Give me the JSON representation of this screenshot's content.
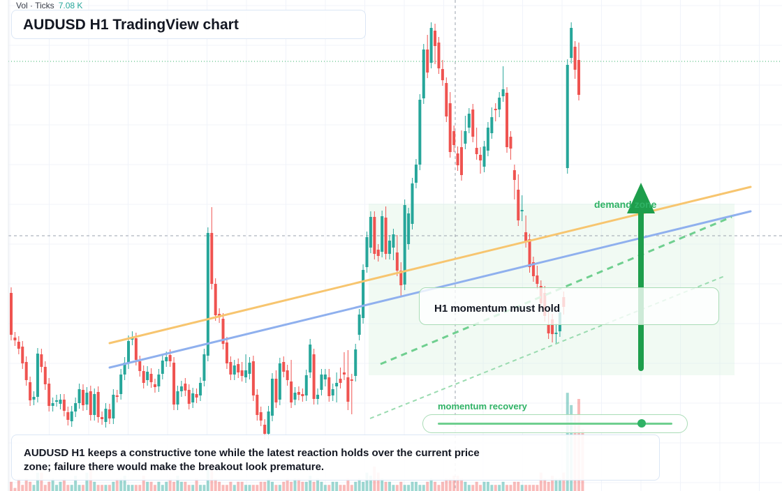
{
  "header": {
    "vol_label": "Vol · Ticks",
    "vol_value": "7.08 K",
    "title": "AUDUSD H1 TradingView chart"
  },
  "annotations": {
    "callout": "H1 momentum must hold",
    "zone_label": "demand zone",
    "momentum_label": "momentum recovery",
    "momentum_level": 0.87,
    "summary": "AUDUSD H1 keeps a constructive tone while the latest reaction holds over the current price zone; failure there would make the breakout look premature."
  },
  "colors": {
    "up": "#26a69a",
    "down": "#ef5350",
    "trend_orange": "#f7c56f",
    "trend_blue": "#8fb0ee",
    "accent_green": "#2fb265",
    "arrow_green": "#1e9e4c"
  },
  "chart_data": {
    "type": "candlestick",
    "candles": [
      [
        420,
        540,
        462,
        480
      ],
      [
        484,
        525,
        464,
        488
      ],
      [
        490,
        513,
        476,
        500
      ],
      [
        497,
        539,
        476,
        521
      ],
      [
        519,
        548,
        520,
        545
      ],
      [
        548,
        578,
        490,
        574
      ],
      [
        573,
        587,
        542,
        569
      ],
      [
        569,
        585,
        493,
        507
      ],
      [
        508,
        567,
        473,
        526
      ],
      [
        526,
        558,
        520,
        551
      ],
      [
        550,
        588,
        539,
        582
      ],
      [
        582,
        592,
        558,
        578
      ],
      [
        575,
        582,
        571,
        574
      ],
      [
        579,
        585,
        564,
        573
      ],
      [
        573,
        610,
        560,
        589
      ],
      [
        591,
        613,
        572,
        602
      ],
      [
        604,
        625,
        557,
        590
      ],
      [
        590,
        594,
        575,
        578
      ],
      [
        578,
        585,
        550,
        558
      ],
      [
        559,
        583,
        544,
        581
      ],
      [
        580,
        592,
        554,
        563
      ],
      [
        561,
        599,
        547,
        595
      ],
      [
        595,
        613,
        555,
        565
      ],
      [
        562,
        612,
        558,
        598
      ],
      [
        598,
        610,
        575,
        601
      ],
      [
        605,
        630,
        573,
        586
      ],
      [
        587,
        623,
        569,
        600
      ],
      [
        600,
        620,
        566,
        566
      ],
      [
        567,
        578,
        562,
        569
      ],
      [
        565,
        590,
        520,
        537
      ],
      [
        537,
        557,
        512,
        520
      ],
      [
        521,
        536,
        481,
        489
      ],
      [
        487,
        536,
        478,
        483
      ],
      [
        485,
        522,
        485,
        516
      ],
      [
        518,
        564,
        511,
        532
      ],
      [
        532,
        550,
        505,
        549
      ],
      [
        545,
        553,
        518,
        533
      ],
      [
        536,
        552,
        523,
        548
      ],
      [
        551,
        578,
        541,
        555
      ],
      [
        554,
        562,
        528,
        537
      ],
      [
        536,
        549,
        510,
        517
      ],
      [
        518,
        542,
        507,
        512
      ],
      [
        509,
        528,
        505,
        518
      ],
      [
        520,
        578,
        509,
        580
      ],
      [
        580,
        591,
        545,
        561
      ],
      [
        561,
        577,
        543,
        554
      ],
      [
        550,
        568,
        540,
        560
      ],
      [
        559,
        581,
        548,
        579
      ],
      [
        577,
        589,
        561,
        564
      ],
      [
        565,
        580,
        545,
        570
      ],
      [
        567,
        578,
        533,
        549
      ],
      [
        546,
        552,
        487,
        508
      ],
      [
        510,
        511,
        334,
        334
      ],
      [
        334,
        305,
        329,
        407
      ],
      [
        407,
        437,
        400,
        452
      ],
      [
        450,
        461,
        432,
        455
      ],
      [
        457,
        472,
        478,
        493
      ],
      [
        491,
        520,
        491,
        521
      ],
      [
        519,
        532,
        511,
        537
      ],
      [
        537,
        538,
        511,
        524
      ],
      [
        522,
        538,
        513,
        534
      ],
      [
        531,
        527,
        535,
        539
      ],
      [
        541,
        516,
        511,
        531
      ],
      [
        536,
        528,
        516,
        520
      ],
      [
        518,
        565,
        510,
        567
      ],
      [
        566,
        567,
        575,
        595
      ],
      [
        591,
        596,
        575,
        603
      ],
      [
        609,
        624,
        594,
        622
      ],
      [
        622,
        625,
        592,
        590
      ],
      [
        596,
        597,
        543,
        543
      ],
      [
        543,
        539,
        526,
        577
      ],
      [
        573,
        574,
        519,
        521
      ],
      [
        519,
        523,
        518,
        533
      ],
      [
        531,
        531,
        520,
        545
      ],
      [
        547,
        524,
        562,
        577
      ],
      [
        573,
        580,
        531,
        563
      ],
      [
        562,
        581,
        563,
        566
      ],
      [
        565,
        578,
        526,
        568
      ],
      [
        567,
        580,
        532,
        538
      ],
      [
        534,
        537,
        495,
        494
      ],
      [
        508,
        514,
        495,
        572
      ],
      [
        572,
        565,
        504,
        566
      ],
      [
        559,
        539,
        510,
        537
      ],
      [
        544,
        559,
        546,
        537
      ],
      [
        541,
        537,
        542,
        568
      ],
      [
        567,
        579,
        553,
        558
      ],
      [
        554,
        542,
        569,
        549
      ],
      [
        543,
        535,
        549,
        549
      ],
      [
        534,
        513,
        536,
        537
      ],
      [
        541,
        510,
        580,
        576
      ],
      [
        544,
        575,
        586,
        544
      ],
      [
        539,
        544,
        528,
        501
      ],
      [
        480,
        458,
        441,
        451
      ],
      [
        456,
        415,
        421,
        387
      ],
      [
        383,
        385,
        338,
        340
      ],
      [
        355,
        337,
        312,
        311
      ],
      [
        311,
        312,
        344,
        364
      ],
      [
        358,
        359,
        352,
        367
      ],
      [
        361,
        363,
        342,
        310
      ],
      [
        312,
        304,
        364,
        364
      ],
      [
        364,
        357,
        328,
        345
      ],
      [
        355,
        337,
        365,
        336
      ],
      [
        362,
        345,
        372,
        388
      ],
      [
        388,
        384,
        417,
        409
      ],
      [
        408,
        373,
        324,
        294
      ],
      [
        350,
        343,
        309,
        306
      ],
      [
        321,
        285,
        259,
        263
      ],
      [
        262,
        265,
        251,
        236
      ],
      [
        236,
        226,
        174,
        143
      ],
      [
        141,
        139,
        117,
        71
      ],
      [
        71,
        58,
        95,
        104
      ],
      [
        90,
        44,
        52,
        40
      ],
      [
        44,
        42,
        84,
        66
      ],
      [
        61,
        72,
        65,
        98
      ],
      [
        99,
        94,
        103,
        115
      ],
      [
        119,
        148,
        165,
        167
      ],
      [
        148,
        140,
        203,
        218
      ],
      [
        188,
        195,
        210,
        208
      ],
      [
        220,
        218,
        231,
        237
      ],
      [
        211,
        195,
        244,
        251
      ],
      [
        206,
        174,
        193,
        188
      ],
      [
        183,
        183,
        157,
        163
      ],
      [
        157,
        165,
        168,
        196
      ],
      [
        212,
        191,
        211,
        221
      ],
      [
        222,
        219,
        241,
        230
      ],
      [
        239,
        244,
        225,
        210
      ],
      [
        216,
        204,
        186,
        183
      ],
      [
        191,
        162,
        168,
        168
      ],
      [
        156,
        156,
        166,
        156
      ],
      [
        157,
        147,
        160,
        140
      ],
      [
        138,
        103,
        112,
        128
      ],
      [
        133,
        180,
        174,
        211
      ],
      [
        196,
        210,
        221,
        213
      ],
      [
        244,
        247,
        278,
        258
      ],
      [
        272,
        258,
        274,
        316
      ],
      [
        303,
        288,
        309,
        301
      ],
      [
        333,
        317,
        328,
        347
      ],
      [
        343,
        356,
        372,
        383
      ],
      [
        376,
        376,
        382,
        396
      ],
      [
        395,
        389,
        382,
        407
      ],
      [
        410,
        411,
        420,
        435
      ],
      [
        420,
        418,
        411,
        453
      ],
      [
        466,
        448,
        474,
        478
      ],
      [
        458,
        477,
        483,
        479
      ],
      [
        479,
        472,
        485,
        477
      ],
      [
        475,
        474,
        460,
        448
      ],
      [
        426,
        436,
        443,
        440
      ],
      [
        241,
        226,
        209,
        93
      ],
      [
        83,
        58,
        54,
        40
      ],
      [
        67,
        70,
        105,
        100
      ],
      [
        86,
        69,
        131,
        136
      ]
    ],
    "volume": [
      3,
      1,
      4,
      2,
      4,
      3,
      2,
      6,
      6,
      2,
      3,
      4,
      2,
      3,
      4,
      2,
      2,
      5,
      2,
      2,
      6,
      8,
      3,
      2,
      2,
      2,
      2,
      3,
      4,
      4,
      5,
      2,
      2,
      2,
      2,
      5,
      3,
      3,
      2,
      3,
      2,
      3,
      4,
      3,
      5,
      3,
      3,
      2,
      2,
      4,
      2,
      2,
      8,
      9,
      4,
      3,
      2,
      2,
      3,
      2,
      3,
      3,
      2,
      2,
      2,
      2,
      3,
      3,
      4,
      3,
      2,
      2,
      3,
      4,
      3,
      4,
      4,
      3,
      3,
      5,
      3,
      4,
      3,
      2,
      2,
      3,
      3,
      2,
      2,
      4,
      2,
      3,
      4,
      3,
      6,
      5,
      8,
      6,
      4,
      3,
      3,
      2,
      2,
      3,
      2,
      2,
      3,
      3,
      2,
      2,
      3,
      4,
      3,
      2,
      3,
      4,
      4,
      5,
      5,
      4,
      3,
      2,
      2,
      3,
      2,
      3,
      3,
      2,
      2,
      2,
      3,
      2,
      2,
      3,
      3,
      2,
      2,
      2,
      2,
      2,
      6,
      4,
      3,
      5,
      4,
      4,
      6,
      32,
      28,
      25,
      30,
      20
    ]
  }
}
